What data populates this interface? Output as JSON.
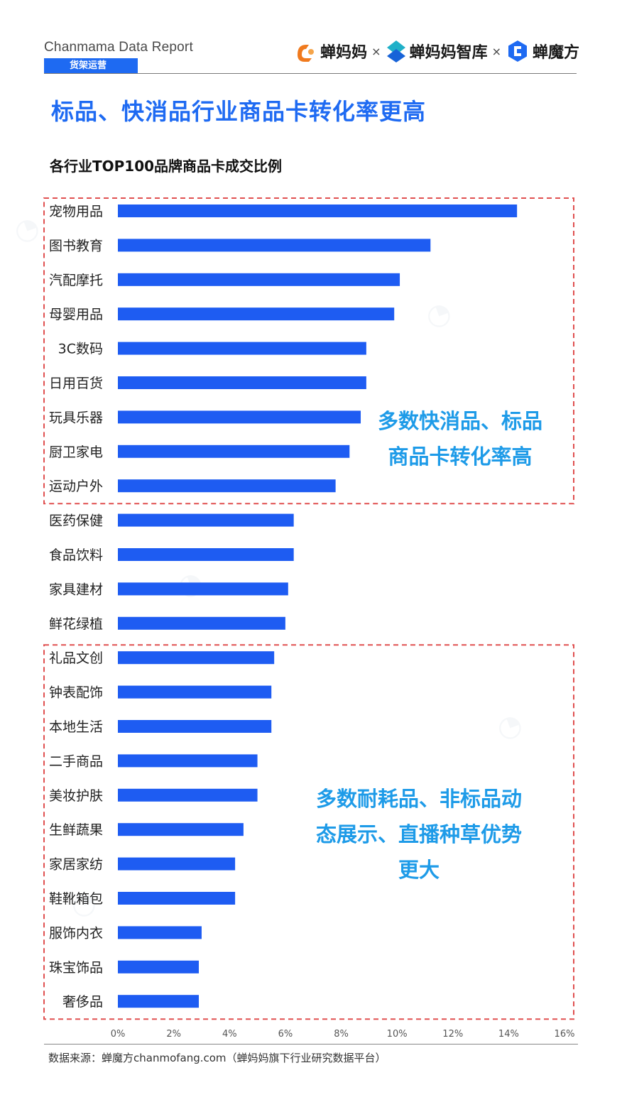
{
  "header": {
    "report_name": "Chanmama Data Report",
    "section_tag": "货架运营",
    "logos": [
      "蝉妈妈",
      "蝉妈妈智库",
      "蝉魔方"
    ],
    "separator": "×"
  },
  "page_title": "标品、快消品行业商品卡转化率更高",
  "callouts": {
    "top": [
      "多数快消品、标品",
      "商品卡转化率高"
    ],
    "bottom": [
      "多数耐耗品、非标品动",
      "态展示、直播种草优势",
      "更大"
    ]
  },
  "footer": {
    "source": "数据来源：蝉魔方chanmofang.com（蝉妈妈旗下行业研究数据平台）"
  },
  "colors": {
    "bar": "#1e5cf2",
    "accent": "#1e6af2",
    "callout": "#1e9be8",
    "highlight_box": "#e05050"
  },
  "chart_data": {
    "type": "bar",
    "orientation": "horizontal",
    "title": "各行业TOP100品牌商品卡成交比例",
    "categories": [
      "宠物用品",
      "图书教育",
      "汽配摩托",
      "母婴用品",
      "3C数码",
      "日用百货",
      "玩具乐器",
      "厨卫家电",
      "运动户外",
      "医药保健",
      "食品饮料",
      "家具建材",
      "鲜花绿植",
      "礼品文创",
      "钟表配饰",
      "本地生活",
      "二手商品",
      "美妆护肤",
      "生鲜蔬果",
      "家居家纺",
      "鞋靴箱包",
      "服饰内衣",
      "珠宝饰品",
      "奢侈品"
    ],
    "values": [
      14.3,
      11.2,
      10.1,
      9.9,
      8.9,
      8.9,
      8.7,
      8.3,
      7.8,
      6.3,
      6.3,
      6.1,
      6.0,
      5.6,
      5.5,
      5.5,
      5.0,
      5.0,
      4.5,
      4.2,
      4.2,
      3.0,
      2.9,
      2.9
    ],
    "xlim": [
      0,
      16
    ],
    "ticks": [
      0,
      2,
      4,
      6,
      8,
      10,
      12,
      14,
      16
    ],
    "tick_labels": [
      "0%",
      "2%",
      "4%",
      "6%",
      "8%",
      "10%",
      "12%",
      "14%",
      "16%"
    ],
    "grid": false,
    "highlight_groups": [
      {
        "from": "宠物用品",
        "to": "运动户外"
      },
      {
        "from": "礼品文创",
        "to": "奢侈品"
      }
    ]
  }
}
